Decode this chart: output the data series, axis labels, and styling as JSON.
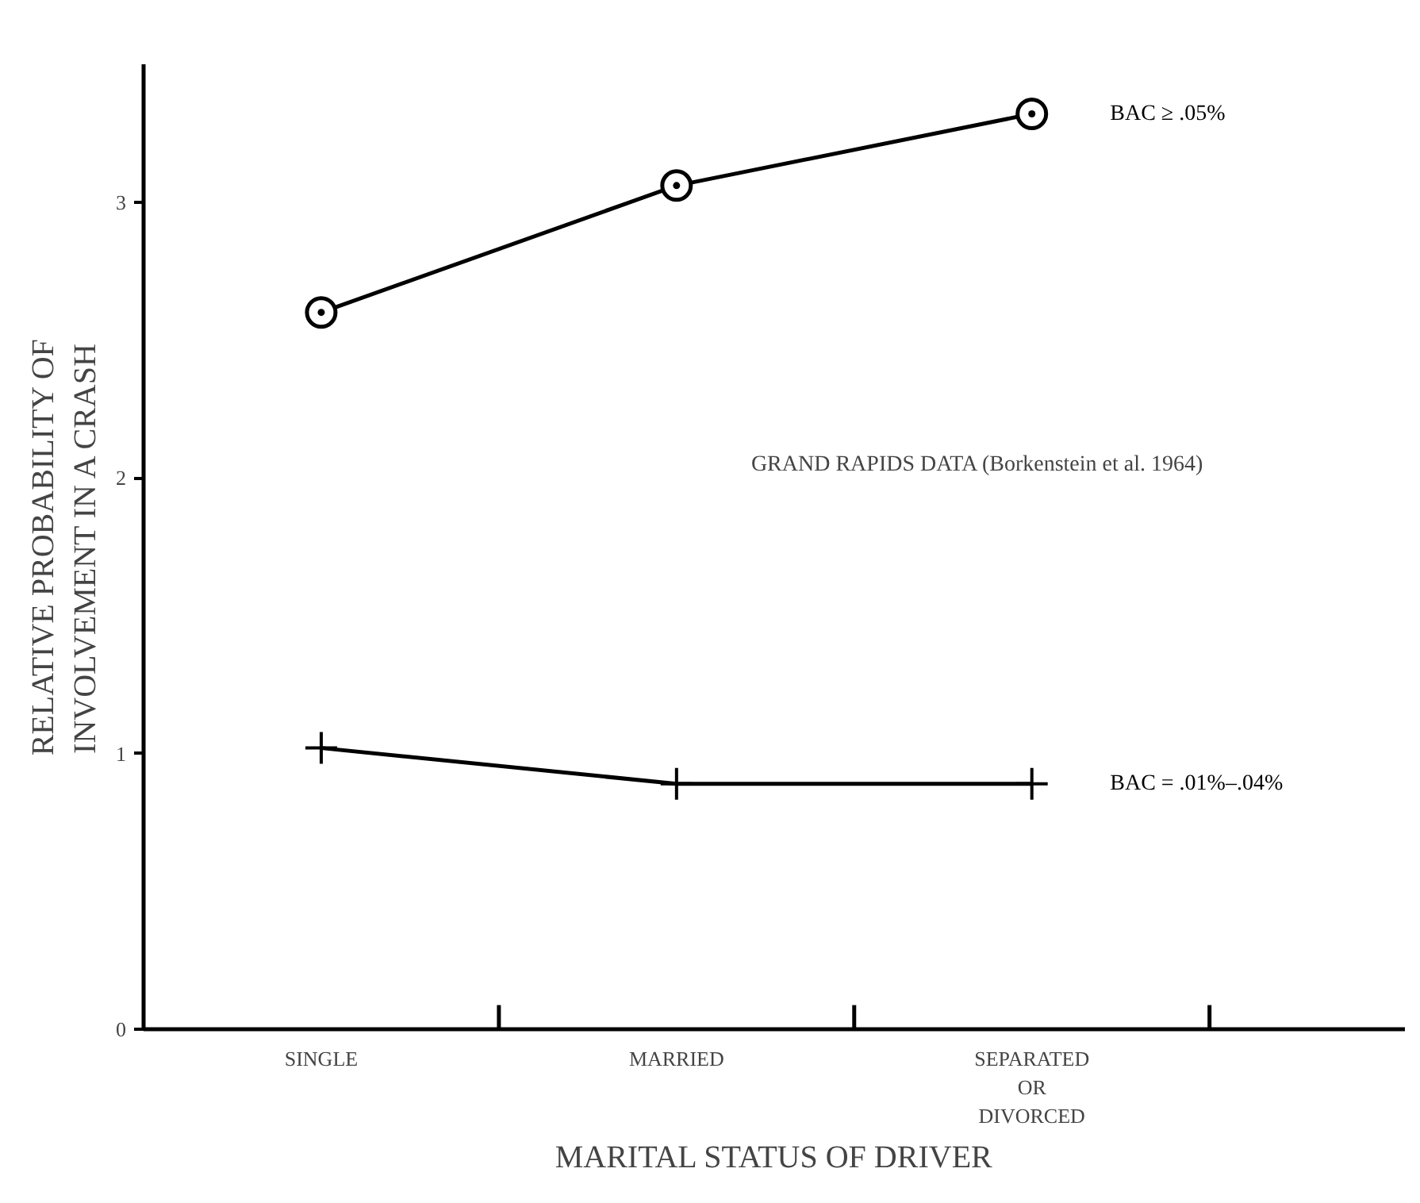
{
  "chart_data": {
    "type": "line",
    "xlabel": "MARITAL STATUS OF DRIVER",
    "ylabel": "RELATIVE PROBABILITY OF\nINVOLVEMENT IN A CRASH",
    "categories": [
      "SINGLE",
      "MARRIED",
      "SEPARATED\nOR\nDIVORCED"
    ],
    "series": [
      {
        "name": "BAC ≥ .05%",
        "color": "#000000",
        "marker": "circle",
        "values": [
          2.6,
          3.06,
          3.32
        ]
      },
      {
        "name": "BAC = .01%–.04%",
        "color": "#000000",
        "marker": "cross",
        "values": [
          1.02,
          0.89,
          0.89
        ]
      }
    ],
    "ylim": [
      0,
      3.5
    ],
    "yticks": [
      0,
      1,
      2,
      3
    ],
    "grid": false,
    "annotations": [
      "GRAND RAPIDS DATA (Borkenstein et al. 1964)"
    ]
  }
}
